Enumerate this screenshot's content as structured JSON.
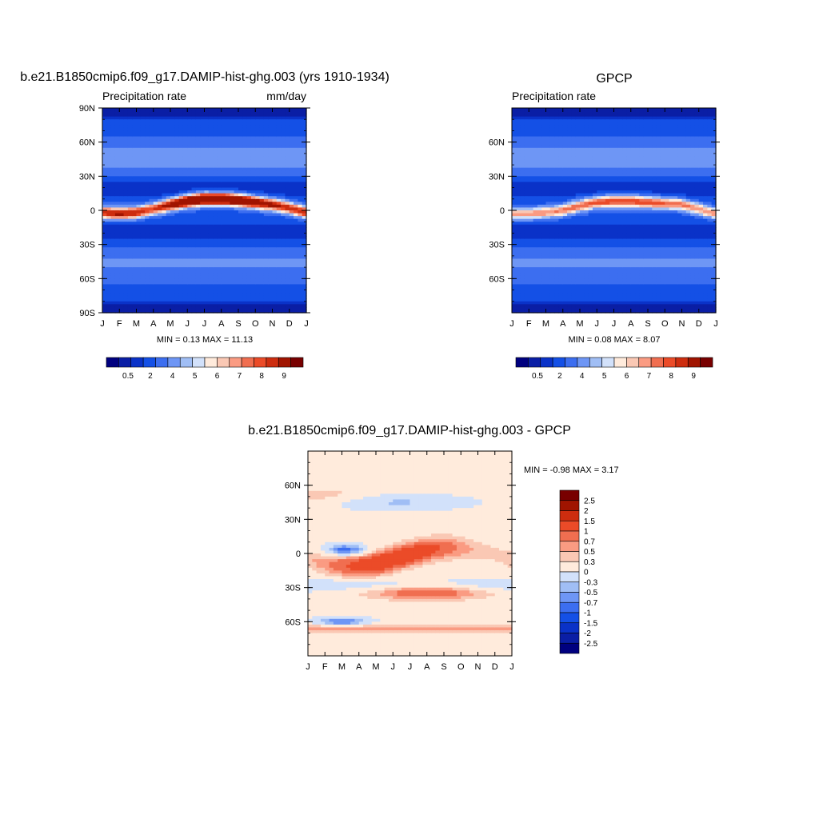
{
  "chart_data": [
    {
      "type": "heatmap",
      "title": "b.e21.B1850cmip6.f09_g17.DAMIP-hist-ghg.003 (yrs 1910-1934)",
      "subtitle_left": "Precipitation rate",
      "subtitle_right": "mm/day",
      "x_tick_labels": [
        "J",
        "F",
        "M",
        "A",
        "M",
        "J",
        "J",
        "A",
        "S",
        "O",
        "N",
        "D",
        "J"
      ],
      "y_ticks": [
        {
          "lat": 90,
          "label": "90N"
        },
        {
          "lat": 60,
          "label": "60N"
        },
        {
          "lat": 30,
          "label": "30N"
        },
        {
          "lat": 0,
          "label": "0"
        },
        {
          "lat": -30,
          "label": "30S"
        },
        {
          "lat": -60,
          "label": "60S"
        },
        {
          "lat": -90,
          "label": "90S"
        }
      ],
      "xlim": [
        0,
        12
      ],
      "ylim": [
        -90,
        90
      ],
      "stats": "MIN =   0.13 MAX =  11.13",
      "itcz_peak_lat": [
        -2,
        -3,
        -2,
        1,
        5,
        8,
        10,
        10,
        9,
        7,
        5,
        2,
        -2
      ],
      "itcz_peak_value": [
        8.5,
        8.8,
        8.6,
        8.0,
        9.3,
        10.6,
        11.1,
        11.0,
        10.6,
        9.8,
        8.9,
        8.4,
        8.5
      ],
      "levels": [
        0.5,
        1,
        2,
        3,
        4,
        5,
        5.5,
        6,
        6.5,
        7,
        7.5,
        8,
        8.5,
        9
      ],
      "colors": [
        "#00007f",
        "#0a1ea5",
        "#0a32c8",
        "#1450e6",
        "#3c6ef0",
        "#6e96f5",
        "#a0bef5",
        "#d2e1fa",
        "#ffebdc",
        "#fac8b4",
        "#fa9b82",
        "#f06e50",
        "#eb4b28",
        "#cd2d0f",
        "#a01400",
        "#780000"
      ],
      "colorbar_labels": [
        "0.5",
        "2",
        "4",
        "5",
        "6",
        "7",
        "8",
        "9"
      ]
    },
    {
      "type": "heatmap",
      "title": "GPCP",
      "subtitle_left": "Precipitation rate",
      "x_tick_labels": [
        "J",
        "F",
        "M",
        "A",
        "M",
        "J",
        "J",
        "A",
        "S",
        "O",
        "N",
        "D",
        "J"
      ],
      "y_ticks": [
        {
          "lat": 60,
          "label": "60N"
        },
        {
          "lat": 30,
          "label": "30N"
        },
        {
          "lat": 0,
          "label": "0"
        },
        {
          "lat": -30,
          "label": "30S"
        },
        {
          "lat": -60,
          "label": "60S"
        }
      ],
      "xlim": [
        0,
        12
      ],
      "ylim": [
        -90,
        90
      ],
      "stats": "MIN =   0.08 MAX =   8.07",
      "itcz_peak_lat": [
        -3,
        -3,
        -2,
        0,
        4,
        7,
        8,
        8,
        7,
        6,
        5,
        1,
        -3
      ],
      "itcz_peak_value": [
        6.8,
        6.9,
        7.0,
        7.2,
        7.4,
        7.8,
        8.0,
        8.0,
        7.9,
        7.6,
        7.3,
        7.0,
        6.8
      ],
      "levels": [
        0.5,
        1,
        2,
        3,
        4,
        5,
        5.5,
        6,
        6.5,
        7,
        7.5,
        8,
        8.5,
        9
      ],
      "colors": [
        "#00007f",
        "#0a1ea5",
        "#0a32c8",
        "#1450e6",
        "#3c6ef0",
        "#6e96f5",
        "#a0bef5",
        "#d2e1fa",
        "#ffebdc",
        "#fac8b4",
        "#fa9b82",
        "#f06e50",
        "#eb4b28",
        "#cd2d0f",
        "#a01400",
        "#780000"
      ],
      "colorbar_labels": [
        "0.5",
        "2",
        "4",
        "5",
        "6",
        "7",
        "8",
        "9"
      ]
    },
    {
      "type": "heatmap",
      "title": "b.e21.B1850cmip6.f09_g17.DAMIP-hist-ghg.003 - GPCP",
      "x_tick_labels": [
        "J",
        "F",
        "M",
        "A",
        "M",
        "J",
        "J",
        "A",
        "S",
        "O",
        "N",
        "D",
        "J"
      ],
      "y_ticks": [
        {
          "lat": 60,
          "label": "60N"
        },
        {
          "lat": 30,
          "label": "30N"
        },
        {
          "lat": 0,
          "label": "0"
        },
        {
          "lat": -30,
          "label": "30S"
        },
        {
          "lat": -60,
          "label": "60S"
        }
      ],
      "xlim": [
        0,
        12
      ],
      "ylim": [
        -90,
        90
      ],
      "stats": "MIN =  -0.98 MAX =   3.17",
      "levels": [
        -2.5,
        -2,
        -1.5,
        -1,
        -0.7,
        -0.5,
        -0.3,
        0,
        0.3,
        0.5,
        0.7,
        1,
        1.5,
        2,
        2.5
      ],
      "colors": [
        "#00007f",
        "#0a1ea5",
        "#0a32c8",
        "#1450e6",
        "#3c6ef0",
        "#6e96f5",
        "#a0bef5",
        "#d2e1fa",
        "#ffebdc",
        "#fac8b4",
        "#fa9b82",
        "#f06e50",
        "#eb4b28",
        "#cd2d0f",
        "#a01400",
        "#780000"
      ],
      "colorbar_labels": [
        "2.5",
        "2",
        "1.5",
        "1",
        "0.7",
        "0.5",
        "0.3",
        "0",
        "-0.3",
        "-0.5",
        "-0.7",
        "-1",
        "-1.5",
        "-2",
        "-2.5"
      ]
    }
  ]
}
